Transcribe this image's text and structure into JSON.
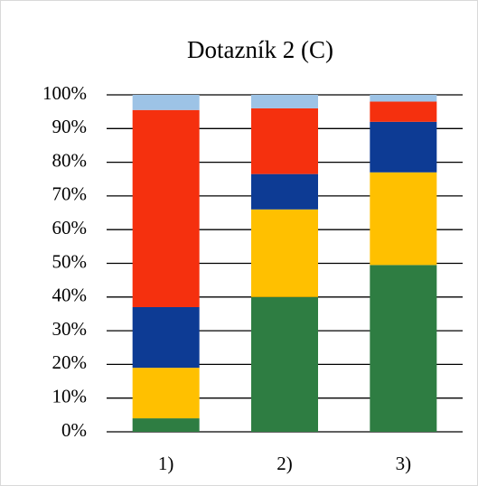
{
  "chart_data": {
    "type": "stacked_bar",
    "title": "Dotazník 2 (C)",
    "categories": [
      "1)",
      "2)",
      "3)"
    ],
    "series": [
      {
        "color": "#2e7d42",
        "values": [
          4,
          40,
          49.5
        ]
      },
      {
        "color": "#ffc000",
        "values": [
          15,
          26,
          27.5
        ]
      },
      {
        "color": "#0d3b94",
        "values": [
          18,
          10.5,
          15
        ]
      },
      {
        "color": "#f5300e",
        "values": [
          58.5,
          19.5,
          6
        ]
      },
      {
        "color": "#9dc3e6",
        "values": [
          4.5,
          4,
          2
        ]
      }
    ],
    "ylim": [
      0,
      100
    ],
    "yticks": [
      {
        "value": 0,
        "label": "0%"
      },
      {
        "value": 10,
        "label": "10%"
      },
      {
        "value": 20,
        "label": "20%"
      },
      {
        "value": 30,
        "label": "30%"
      },
      {
        "value": 40,
        "label": "40%"
      },
      {
        "value": 50,
        "label": "50%"
      },
      {
        "value": 60,
        "label": "60%"
      },
      {
        "value": 70,
        "label": "70%"
      },
      {
        "value": 80,
        "label": "80%"
      },
      {
        "value": 90,
        "label": "90%"
      },
      {
        "value": 100,
        "label": "100%"
      }
    ],
    "grid": true
  }
}
